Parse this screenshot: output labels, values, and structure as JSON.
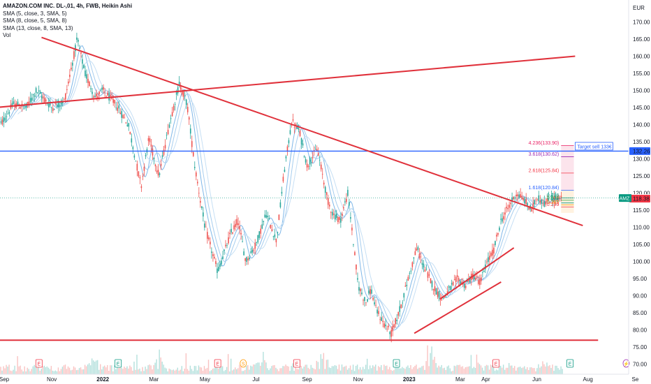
{
  "legend": {
    "title": "AMAZON.COM INC. DL-,01, 4h, FWB, Heikin Ashi",
    "sma1": "SMA (5, close, 3, SMA, 5)",
    "sma2": "SMA (8, close, 5, SMA, 8)",
    "sma3": "SMA (13, close, 8, SMA, 13)",
    "vol": "Vol"
  },
  "currency": "EUR",
  "chart_data": {
    "type": "candlestick",
    "ylim": [
      69,
      178
    ],
    "y_ticks": [
      70,
      75,
      80,
      85,
      90,
      95,
      100,
      105,
      110,
      115,
      120,
      125,
      130,
      135,
      140,
      145,
      150,
      155,
      160,
      165,
      170
    ],
    "x_ticks": [
      "Sep",
      "Nov",
      "2022",
      "Mar",
      "May",
      "Jul",
      "Sep",
      "Nov",
      "2023",
      "Mar",
      "Apr",
      "Jun",
      "Aug",
      "Se"
    ],
    "price_path_months": [
      0,
      0.5,
      1,
      1.4,
      2,
      2.5,
      3,
      3.3,
      3.7,
      4,
      4.5,
      5,
      5.5,
      5.8,
      6.2,
      6.6,
      7,
      7.3,
      7.6,
      8,
      8.5,
      9,
      9.3,
      9.6,
      10,
      10.4,
      10.8,
      11.1,
      11.4,
      11.7,
      12,
      12.4,
      12.8,
      13,
      13.3,
      13.6,
      14,
      14.3,
      14.5,
      14.7,
      15,
      15.3,
      15.6,
      16,
      16.3,
      16.6,
      17,
      17.3,
      17.6,
      17.9,
      18.2,
      18.5,
      18.8,
      19,
      19.3,
      19.6,
      19.9,
      20.2,
      20.5,
      20.8,
      21,
      21.3,
      21.6,
      21.9
    ],
    "price_path_values": [
      140,
      146,
      145,
      150,
      145,
      147,
      165,
      155,
      148,
      150,
      146,
      140,
      122,
      136,
      125,
      140,
      152,
      146,
      128,
      110,
      97,
      108,
      112,
      100,
      105,
      114,
      106,
      126,
      141,
      138,
      128,
      133,
      118,
      114,
      112,
      120,
      93,
      88,
      92,
      86,
      82,
      79,
      85,
      96,
      104,
      98,
      92,
      89,
      92,
      95,
      93,
      96,
      94,
      99,
      103,
      112,
      116,
      120,
      118,
      115,
      119,
      117,
      118.5,
      118.4
    ],
    "volume_peak_months": [
      3.7,
      6.2,
      10.2,
      12.6,
      16.9,
      18.5,
      21.3
    ],
    "trendlines": [
      {
        "from": [
          1.6,
          165.5
        ],
        "to": [
          22.8,
          110.5
        ],
        "color": "#e0313b"
      },
      {
        "from": [
          -0.2,
          145
        ],
        "to": [
          22.5,
          160
        ],
        "color": "#e0313b"
      },
      {
        "from": [
          -0.2,
          77
        ],
        "to": [
          23.4,
          77
        ],
        "color": "#e0313b"
      },
      {
        "from": [
          17.2,
          89
        ],
        "to": [
          20.1,
          104
        ],
        "color": "#e0313b"
      },
      {
        "from": [
          16.2,
          79
        ],
        "to": [
          19.6,
          94
        ],
        "color": "#e0313b"
      }
    ],
    "horizontal_line": {
      "value": 132.26,
      "color": "#2962ff"
    },
    "fib_levels": [
      {
        "label": "4.236(133.90)",
        "value": 133.9,
        "color": "#e91e63"
      },
      {
        "label": "3.618(130.62)",
        "value": 130.62,
        "color": "#9c27b0"
      },
      {
        "label": "2.618(125.84)",
        "value": 125.84,
        "color": "#f23645"
      },
      {
        "label": "1.618(120.84)",
        "value": 120.84,
        "color": "#2962ff"
      },
      {
        "label": "0.786",
        "value": 118.6,
        "color": "#089981"
      },
      {
        "label": "0.618",
        "value": 117.9,
        "color": "#4caf50"
      },
      {
        "label": "0.5",
        "value": 117.1,
        "color": "#089981"
      },
      {
        "label": "0.382",
        "value": 116.5,
        "color": "#ff9800"
      },
      {
        "label": "0.236",
        "value": 115.9,
        "color": "#f23645"
      }
    ],
    "annotation": "Target sell 133€",
    "last_price": 118.54,
    "low_price": 118.38,
    "target_price": 132.26,
    "symbol": "AMZ",
    "events": [
      {
        "month": 1.5,
        "letter": "E",
        "color": "#f23645"
      },
      {
        "month": 4.6,
        "letter": "E",
        "color": "#089981"
      },
      {
        "month": 8.5,
        "letter": "E",
        "color": "#f23645"
      },
      {
        "month": 9.5,
        "letter": "S",
        "color": "#ff9800"
      },
      {
        "month": 11.6,
        "letter": "E",
        "color": "#f23645"
      },
      {
        "month": 15.5,
        "letter": "E",
        "color": "#089981"
      },
      {
        "month": 19.4,
        "letter": "E",
        "color": "#f23645"
      },
      {
        "month": 22.3,
        "letter": "E",
        "color": "#089981"
      },
      {
        "month": 24.5,
        "letter": "⚡",
        "color": "#9c27b0"
      },
      {
        "month": 26.2,
        "letter": "E",
        "color": "#e91e63"
      }
    ]
  }
}
